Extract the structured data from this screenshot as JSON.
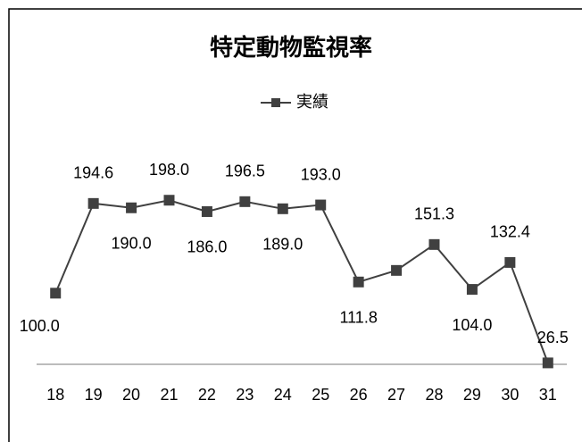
{
  "chart_data": {
    "type": "line",
    "title": "特定動物監視率",
    "categories": [
      "18",
      "19",
      "20",
      "21",
      "22",
      "23",
      "24",
      "25",
      "26",
      "27",
      "28",
      "29",
      "30",
      "31"
    ],
    "series": [
      {
        "name": "実績",
        "color": "#404040",
        "values": [
          100.0,
          194.6,
          190.0,
          198.0,
          186.0,
          196.5,
          189.0,
          193.0,
          111.8,
          124,
          151.3,
          104.0,
          132.4,
          26.5
        ],
        "value_labels": [
          "100.0",
          "194.6",
          "190.0",
          "198.0",
          "186.0",
          "196.5",
          "189.0",
          "193.0",
          "111.8",
          null,
          "151.3",
          "104.0",
          "132.4",
          "26.5"
        ]
      }
    ],
    "ylim": [
      25,
      250
    ],
    "legend": "top"
  }
}
